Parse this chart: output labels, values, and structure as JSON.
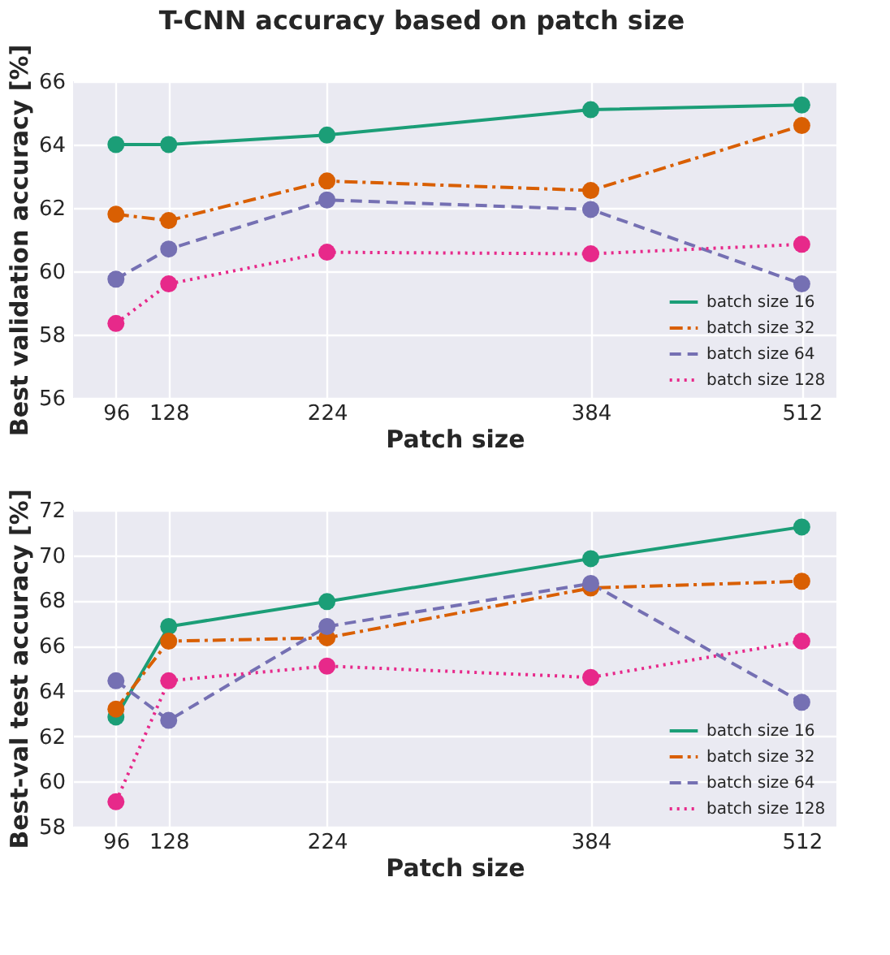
{
  "chart_data": [
    {
      "type": "line",
      "title": "T-CNN accuracy based on patch size",
      "xlabel": "Patch size",
      "ylabel": "Best validation accuracy [%]",
      "x": [
        96,
        128,
        224,
        384,
        512
      ],
      "xlim": [
        70,
        533
      ],
      "xticks": [
        96,
        128,
        224,
        384,
        512
      ],
      "ylim": [
        56,
        66
      ],
      "yticks": [
        56,
        58,
        60,
        62,
        64,
        66
      ],
      "grid": true,
      "legend": "bottom right",
      "marker": "circle",
      "series": [
        {
          "name": "batch size 16",
          "color": "#1b9e77",
          "line_style": "solid",
          "values": [
            64.0,
            64.0,
            64.3,
            65.1,
            65.25
          ]
        },
        {
          "name": "batch size 32",
          "color": "#d95f02",
          "line_style": "dashdot",
          "values": [
            61.8,
            61.6,
            62.85,
            62.55,
            64.6
          ]
        },
        {
          "name": "batch size 64",
          "color": "#7570b3",
          "line_style": "dashed",
          "values": [
            59.75,
            60.7,
            62.25,
            61.95,
            59.6
          ]
        },
        {
          "name": "batch size 128",
          "color": "#e7298a",
          "line_style": "dotted",
          "values": [
            58.35,
            59.6,
            60.6,
            60.55,
            60.85
          ]
        }
      ]
    },
    {
      "type": "line",
      "xlabel": "Patch size",
      "ylabel": "Best-val test accuracy [%]",
      "x": [
        96,
        128,
        224,
        384,
        512
      ],
      "xlim": [
        70,
        533
      ],
      "xticks": [
        96,
        128,
        224,
        384,
        512
      ],
      "ylim": [
        58,
        72
      ],
      "yticks": [
        58,
        60,
        62,
        64,
        66,
        68,
        70,
        72
      ],
      "grid": true,
      "legend": "bottom right",
      "marker": "circle",
      "series": [
        {
          "name": "batch size 16",
          "color": "#1b9e77",
          "line_style": "solid",
          "values": [
            62.85,
            66.85,
            67.95,
            69.85,
            71.25
          ]
        },
        {
          "name": "batch size 32",
          "color": "#d95f02",
          "line_style": "dashdot",
          "values": [
            63.2,
            66.2,
            66.35,
            68.55,
            68.85
          ]
        },
        {
          "name": "batch size 64",
          "color": "#7570b3",
          "line_style": "dashed",
          "values": [
            64.45,
            62.7,
            66.85,
            68.75,
            63.5
          ]
        },
        {
          "name": "batch size 128",
          "color": "#e7298a",
          "line_style": "dotted",
          "values": [
            59.1,
            64.45,
            65.1,
            64.6,
            66.2
          ]
        }
      ]
    }
  ]
}
